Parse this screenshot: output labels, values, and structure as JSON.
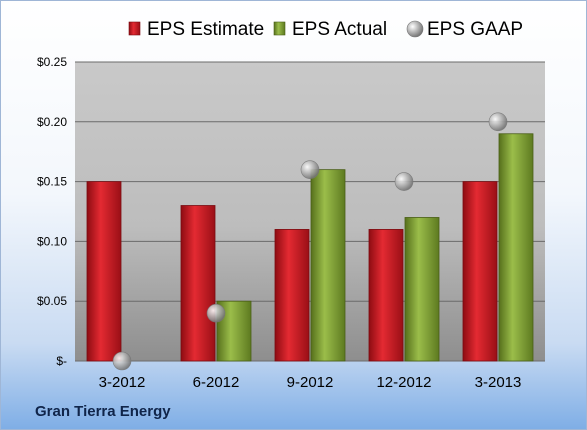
{
  "company_label": "Gran Tierra Energy",
  "chart_data": {
    "type": "bar",
    "categories": [
      "3-2012",
      "6-2012",
      "9-2012",
      "12-2012",
      "3-2013"
    ],
    "series": [
      {
        "name": "EPS Estimate",
        "kind": "bar",
        "color": "#c8141e",
        "values": [
          0.15,
          0.13,
          0.11,
          0.11,
          0.15
        ]
      },
      {
        "name": "EPS Actual",
        "kind": "bar",
        "color": "#7a9a2e",
        "values": [
          null,
          0.05,
          0.16,
          0.12,
          0.19
        ]
      },
      {
        "name": "EPS GAAP",
        "kind": "marker",
        "color": "#a9a9a9",
        "values": [
          0.0,
          0.04,
          0.16,
          0.15,
          0.2
        ]
      }
    ],
    "ylim": [
      0,
      0.25
    ],
    "yticks": [
      0,
      0.05,
      0.1,
      0.15,
      0.2,
      0.25
    ],
    "ytick_labels": [
      "$-",
      "$0.05",
      "$0.10",
      "$0.15",
      "$0.20",
      "$0.25"
    ],
    "grid": true,
    "legend": "top"
  }
}
